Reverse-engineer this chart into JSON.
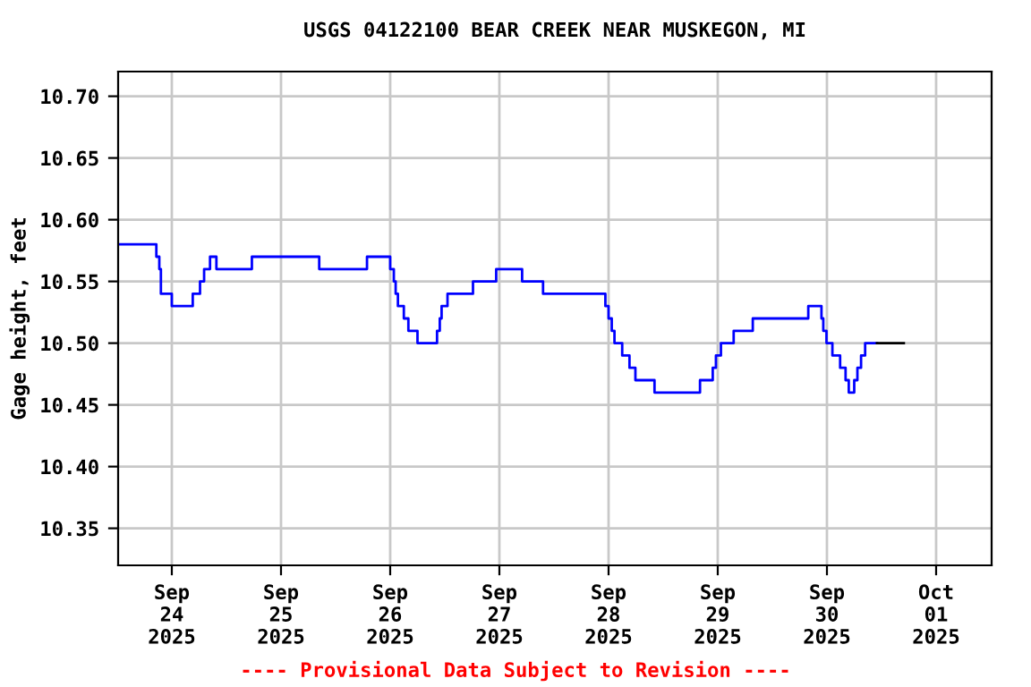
{
  "chart_data": {
    "type": "step",
    "title": "USGS 04122100 BEAR CREEK NEAR MUSKEGON, MI",
    "ylabel": "Gage height, feet",
    "annotations": [
      "---- Provisional Data Subject to Revision ----"
    ],
    "xlim": [
      "2025-09-23T12:12",
      "2025-10-01T12:12"
    ],
    "xticks": [
      {
        "value": "2025-09-24",
        "label": "Sep\n24\n2025"
      },
      {
        "value": "2025-09-25",
        "label": "Sep\n25\n2025"
      },
      {
        "value": "2025-09-26",
        "label": "Sep\n26\n2025"
      },
      {
        "value": "2025-09-27",
        "label": "Sep\n27\n2025"
      },
      {
        "value": "2025-09-28",
        "label": "Sep\n28\n2025"
      },
      {
        "value": "2025-09-29",
        "label": "Sep\n29\n2025"
      },
      {
        "value": "2025-09-30",
        "label": "Sep\n30\n2025"
      },
      {
        "value": "2025-10-01",
        "label": "Oct\n01\n2025"
      }
    ],
    "ylim": [
      10.32,
      10.72
    ],
    "yticks": [
      {
        "value": 10.35,
        "label": "10.35"
      },
      {
        "value": 10.4,
        "label": "10.40"
      },
      {
        "value": 10.45,
        "label": "10.45"
      },
      {
        "value": 10.5,
        "label": "10.50"
      },
      {
        "value": 10.55,
        "label": "10.55"
      },
      {
        "value": 10.6,
        "label": "10.60"
      },
      {
        "value": 10.65,
        "label": "10.65"
      },
      {
        "value": 10.7,
        "label": "10.70"
      }
    ],
    "grid": true,
    "series": [
      {
        "color": "#0000ff",
        "x": [
          "2025-09-23T12:12",
          "2025-09-23T20:36",
          "2025-09-23T21:15",
          "2025-09-23T21:36",
          "2025-09-24T00:00",
          "2025-09-24T04:36",
          "2025-09-24T06:12",
          "2025-09-24T07:06",
          "2025-09-24T08:24",
          "2025-09-24T09:48",
          "2025-09-24T17:36",
          "2025-09-25T08:24",
          "2025-09-25T18:54",
          "2025-09-26T00:00",
          "2025-09-26T00:48",
          "2025-09-26T01:12",
          "2025-09-26T01:42",
          "2025-09-26T03:00",
          "2025-09-26T04:00",
          "2025-09-26T06:00",
          "2025-09-26T10:18",
          "2025-09-26T10:54",
          "2025-09-26T11:18",
          "2025-09-26T12:36",
          "2025-09-26T18:12",
          "2025-09-26T23:18",
          "2025-09-27T05:00",
          "2025-09-27T09:36",
          "2025-09-27T23:18",
          "2025-09-28T00:00",
          "2025-09-28T00:42",
          "2025-09-28T01:18",
          "2025-09-28T03:00",
          "2025-09-28T04:36",
          "2025-09-28T05:54",
          "2025-09-28T10:06",
          "2025-09-28T20:06",
          "2025-09-28T22:54",
          "2025-09-28T23:36",
          "2025-09-29T00:42",
          "2025-09-29T03:30",
          "2025-09-29T07:42",
          "2025-09-29T19:54",
          "2025-09-29T22:48",
          "2025-09-29T23:12",
          "2025-09-29T23:54",
          "2025-09-30T01:12",
          "2025-09-30T02:54",
          "2025-09-30T04:06",
          "2025-09-30T04:48",
          "2025-09-30T06:00",
          "2025-09-30T06:42",
          "2025-09-30T07:30",
          "2025-09-30T08:24",
          "2025-09-30T11:00"
        ],
        "values": [
          10.58,
          10.57,
          10.56,
          10.54,
          10.53,
          10.54,
          10.55,
          10.56,
          10.57,
          10.56,
          10.57,
          10.56,
          10.57,
          10.56,
          10.55,
          10.54,
          10.53,
          10.52,
          10.51,
          10.5,
          10.51,
          10.52,
          10.53,
          10.54,
          10.55,
          10.56,
          10.55,
          10.54,
          10.53,
          10.52,
          10.51,
          10.5,
          10.49,
          10.48,
          10.47,
          10.46,
          10.47,
          10.48,
          10.49,
          10.5,
          10.51,
          10.52,
          10.53,
          10.52,
          10.51,
          10.5,
          10.49,
          10.48,
          10.47,
          10.46,
          10.47,
          10.48,
          10.49,
          10.5,
          10.5
        ]
      },
      {
        "color": "#000000",
        "x": [
          "2025-09-30T11:00",
          "2025-09-30T16:54"
        ],
        "values": [
          10.5,
          10.5
        ]
      }
    ]
  }
}
